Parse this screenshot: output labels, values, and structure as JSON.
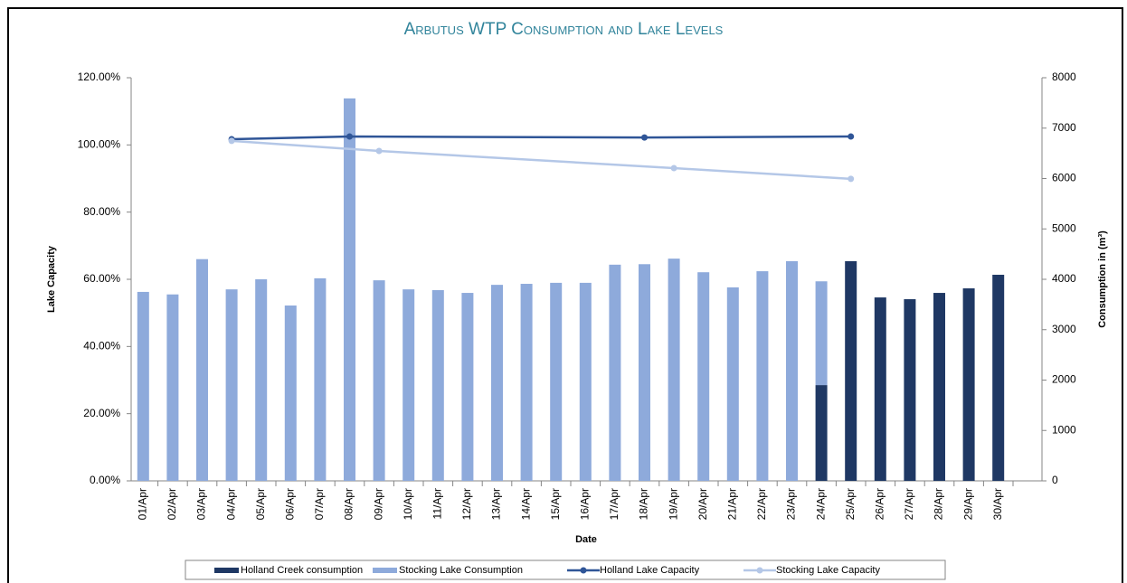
{
  "chart_data": {
    "type": "bar-line",
    "title": "Arbutus WTP Consumption and Lake Levels",
    "xlabel": "Date",
    "ylabel": "Lake Capacity",
    "y2label": "Consumption in (m³)",
    "categories": [
      "01/Apr",
      "02/Apr",
      "03/Apr",
      "04/Apr",
      "05/Apr",
      "06/Apr",
      "07/Apr",
      "08/Apr",
      "09/Apr",
      "10/Apr",
      "11/Apr",
      "12/Apr",
      "13/Apr",
      "14/Apr",
      "15/Apr",
      "16/Apr",
      "17/Apr",
      "18/Apr",
      "19/Apr",
      "20/Apr",
      "21/Apr",
      "22/Apr",
      "23/Apr",
      "24/Apr",
      "25/Apr",
      "26/Apr",
      "27/Apr",
      "28/Apr",
      "29/Apr",
      "30/Apr"
    ],
    "series": [
      {
        "name": "Holland Creek consumption",
        "kind": "bar",
        "axis": "y2",
        "color": "#1f3864",
        "values": [
          null,
          null,
          null,
          null,
          null,
          null,
          null,
          null,
          null,
          null,
          null,
          null,
          null,
          null,
          null,
          null,
          null,
          null,
          null,
          null,
          null,
          null,
          null,
          1900,
          4360,
          3640,
          3605,
          3730,
          3820,
          4090
        ]
      },
      {
        "name": "Stocking Lake Consumption",
        "kind": "bar",
        "axis": "y2",
        "color": "#8eaadb",
        "values": [
          3750,
          3700,
          4400,
          3800,
          4000,
          3480,
          4020,
          7590,
          3980,
          3800,
          3785,
          3730,
          3890,
          3910,
          3930,
          3930,
          4290,
          4300,
          4410,
          4140,
          3840,
          4160,
          4360,
          2060,
          null,
          null,
          null,
          null,
          null,
          null
        ]
      },
      {
        "name": "Holland Lake Capacity",
        "kind": "line",
        "axis": "y",
        "color": "#2f5597",
        "x": [
          "04/Apr",
          "08/Apr",
          "18/Apr",
          "25/Apr"
        ],
        "values": [
          101.7,
          102.5,
          102.2,
          102.5
        ]
      },
      {
        "name": "Stocking Lake Capacity",
        "kind": "line",
        "axis": "y",
        "color": "#b4c7e7",
        "x": [
          "04/Apr",
          "09/Apr",
          "19/Apr",
          "25/Apr"
        ],
        "values": [
          101.2,
          98.2,
          93.1,
          89.9
        ]
      }
    ],
    "stacked": true,
    "ylim": [
      0,
      120
    ],
    "yticks": [
      {
        "value": 0,
        "label": "0.00%"
      },
      {
        "value": 20,
        "label": "20.00%"
      },
      {
        "value": 40,
        "label": "40.00%"
      },
      {
        "value": 60,
        "label": "60.00%"
      },
      {
        "value": 80,
        "label": "80.00%"
      },
      {
        "value": 100,
        "label": "100.00%"
      },
      {
        "value": 120,
        "label": "120.00%"
      }
    ],
    "y2lim": [
      0,
      8000
    ],
    "y2ticks": [
      0,
      1000,
      2000,
      3000,
      4000,
      5000,
      6000,
      7000,
      8000
    ],
    "legend": "bottom"
  }
}
